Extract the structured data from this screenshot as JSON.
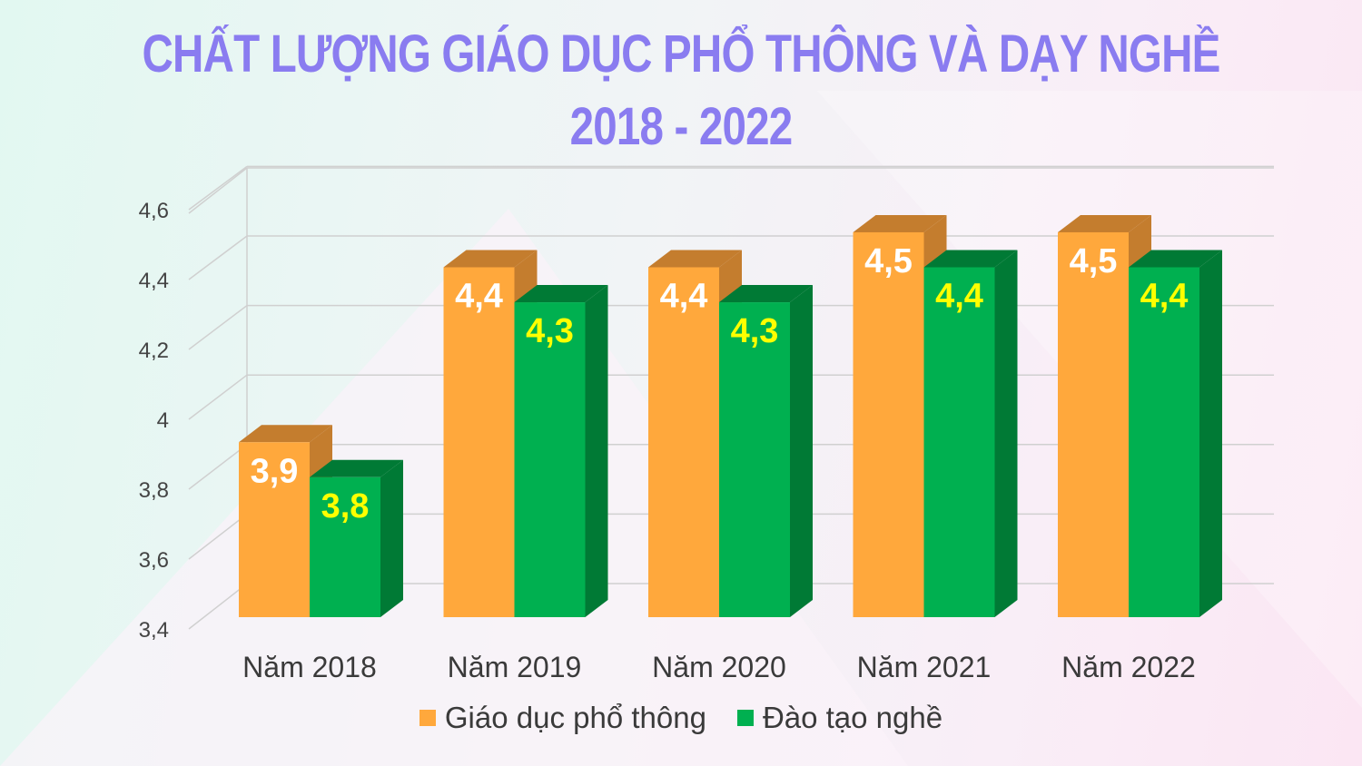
{
  "chart_data": {
    "type": "bar",
    "title": "CHẤT LƯỢNG GIÁO DỤC PHỔ THÔNG VÀ DẠY NGHỀ",
    "subtitle": "2018 - 2022",
    "categories": [
      "Năm 2018",
      "Năm 2019",
      "Năm 2020",
      "Năm 2021",
      "Năm 2022"
    ],
    "series": [
      {
        "name": "Giáo dục phổ thông",
        "values": [
          3.9,
          4.4,
          4.4,
          4.5,
          4.5
        ],
        "labels": [
          "3,9",
          "4,4",
          "4,4",
          "4,5",
          "4,5"
        ],
        "color": "#ffa83c",
        "top_color": "#c47d2e",
        "label_color": "#ffffff"
      },
      {
        "name": "Đào tạo nghề",
        "values": [
          3.8,
          4.3,
          4.3,
          4.4,
          4.4
        ],
        "labels": [
          "3,8",
          "4,3",
          "4,3",
          "4,4",
          "4,4"
        ],
        "color": "#00b050",
        "top_color": "#007a35",
        "label_color": "#ffff00"
      }
    ],
    "yticks": [
      "3,4",
      "3,6",
      "3,8",
      "4",
      "4,2",
      "4,4",
      "4,6"
    ],
    "ylim": [
      3.4,
      4.6
    ],
    "legend_position": "bottom",
    "grid": true
  }
}
